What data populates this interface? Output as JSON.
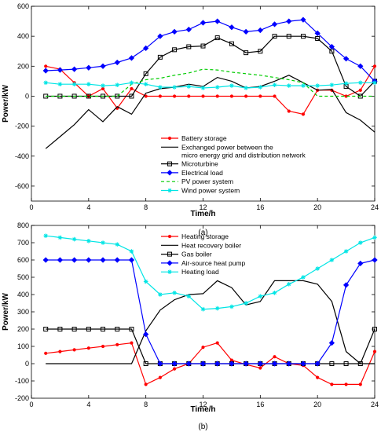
{
  "chart_data": [
    {
      "panel_label": "(a)",
      "type": "line",
      "xlabel": "Time/h",
      "ylabel": "Power/kW",
      "xlim": [
        0,
        24
      ],
      "ylim": [
        -700,
        600
      ],
      "xticks": [
        0,
        4,
        8,
        12,
        16,
        20,
        24
      ],
      "yticks": [
        -600,
        -400,
        -200,
        0,
        200,
        400,
        600
      ],
      "grid": false,
      "legend_position": "bottom-center",
      "x": [
        1,
        2,
        3,
        4,
        5,
        6,
        7,
        8,
        9,
        10,
        11,
        12,
        13,
        14,
        15,
        16,
        17,
        18,
        19,
        20,
        21,
        22,
        23,
        24
      ],
      "series": [
        {
          "name": "Battery storage",
          "color": "#ff0000",
          "marker": "dot",
          "dash": "",
          "values": [
            200,
            180,
            90,
            0,
            50,
            -80,
            50,
            0,
            0,
            0,
            0,
            0,
            0,
            0,
            0,
            0,
            0,
            -100,
            -120,
            40,
            40,
            0,
            40,
            200
          ]
        },
        {
          "name": "Exchanged power between the\nmicro energy grid and distribution network",
          "color": "#000000",
          "marker": "none",
          "dash": "",
          "values": [
            -350,
            -270,
            -190,
            -90,
            -170,
            -70,
            -120,
            20,
            50,
            60,
            80,
            65,
            125,
            100,
            55,
            65,
            100,
            140,
            90,
            40,
            45,
            -110,
            -160,
            -240
          ]
        },
        {
          "name": "Microturbine",
          "color": "#000000",
          "marker": "square",
          "dash": "",
          "values": [
            0,
            0,
            0,
            0,
            0,
            0,
            0,
            150,
            260,
            310,
            330,
            335,
            390,
            350,
            290,
            300,
            400,
            400,
            400,
            385,
            300,
            65,
            0,
            100
          ]
        },
        {
          "name": "Electrical load",
          "color": "#0000ff",
          "marker": "diamond",
          "dash": "",
          "values": [
            170,
            175,
            180,
            190,
            200,
            225,
            255,
            320,
            400,
            430,
            445,
            490,
            500,
            460,
            430,
            440,
            480,
            500,
            510,
            420,
            330,
            250,
            200,
            100
          ]
        },
        {
          "name": "PV power system",
          "color": "#00cc00",
          "marker": "none",
          "dash": "4,3",
          "values": [
            0,
            0,
            0,
            0,
            0,
            0,
            80,
            110,
            120,
            140,
            155,
            180,
            175,
            160,
            150,
            140,
            125,
            110,
            90,
            0,
            0,
            0,
            0,
            0
          ]
        },
        {
          "name": "Wind power system",
          "color": "#00e5e5",
          "marker": "star",
          "dash": "",
          "values": [
            90,
            80,
            80,
            80,
            70,
            75,
            90,
            80,
            60,
            60,
            65,
            55,
            60,
            70,
            55,
            60,
            75,
            70,
            70,
            70,
            75,
            85,
            90,
            90
          ]
        }
      ]
    },
    {
      "panel_label": "(b)",
      "type": "line",
      "xlabel": "Time/h",
      "ylabel": "Power/kW",
      "xlim": [
        0,
        24
      ],
      "ylim": [
        -200,
        800
      ],
      "xticks": [
        0,
        4,
        8,
        12,
        16,
        20,
        24
      ],
      "yticks": [
        -200,
        -100,
        0,
        100,
        200,
        300,
        400,
        500,
        600,
        700,
        800
      ],
      "grid": false,
      "legend_position": "top-center",
      "x": [
        1,
        2,
        3,
        4,
        5,
        6,
        7,
        8,
        9,
        10,
        11,
        12,
        13,
        14,
        15,
        16,
        17,
        18,
        19,
        20,
        21,
        22,
        23,
        24
      ],
      "series": [
        {
          "name": "Heating storage",
          "color": "#ff0000",
          "marker": "dot",
          "dash": "",
          "values": [
            60,
            70,
            80,
            90,
            100,
            110,
            120,
            -120,
            -80,
            -30,
            0,
            95,
            120,
            20,
            -5,
            -25,
            40,
            0,
            -10,
            -80,
            -120,
            -120,
            -120,
            70
          ]
        },
        {
          "name": "Heat recovery boiler",
          "color": "#000000",
          "marker": "none",
          "dash": "",
          "values": [
            0,
            0,
            0,
            0,
            0,
            0,
            0,
            190,
            310,
            370,
            400,
            405,
            480,
            440,
            340,
            360,
            480,
            480,
            480,
            460,
            360,
            70,
            0,
            0
          ]
        },
        {
          "name": "Gas boiler",
          "color": "#000000",
          "marker": "square",
          "dash": "",
          "values": [
            200,
            200,
            200,
            200,
            200,
            200,
            200,
            0,
            0,
            0,
            0,
            0,
            0,
            0,
            0,
            0,
            0,
            0,
            0,
            0,
            0,
            0,
            0,
            200
          ]
        },
        {
          "name": "Air-source heat pump",
          "color": "#0000ff",
          "marker": "diamond",
          "dash": "",
          "values": [
            600,
            600,
            600,
            600,
            600,
            600,
            600,
            170,
            0,
            0,
            0,
            0,
            0,
            0,
            0,
            0,
            0,
            0,
            0,
            0,
            120,
            455,
            580,
            600
          ]
        },
        {
          "name": "Heating load",
          "color": "#00e5e5",
          "marker": "star",
          "dash": "",
          "values": [
            740,
            730,
            720,
            710,
            700,
            690,
            650,
            475,
            400,
            410,
            390,
            315,
            320,
            330,
            350,
            390,
            410,
            460,
            500,
            550,
            600,
            650,
            700,
            730
          ]
        }
      ]
    }
  ]
}
